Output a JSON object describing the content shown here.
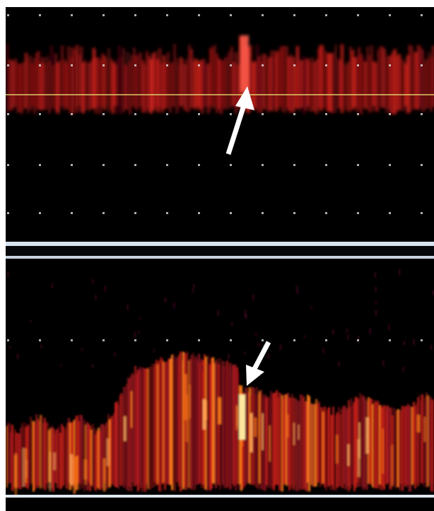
{
  "image": {
    "kind": "doppler-ultrasound-strip",
    "panels": [
      {
        "id": "upper",
        "annotation": "arrow-up-left"
      },
      {
        "id": "lower",
        "annotation": "arrow-down-left"
      }
    ],
    "colors": {
      "background": "#000000",
      "frame": "#ffffff",
      "signal_dark": "#6b0a12",
      "signal_mid": "#c8201a",
      "signal_hot": "#ff7a1a",
      "signal_peak": "#ffe8a0",
      "baseline_yellow": "#e8e070",
      "separator": "#d8e4f0",
      "marker_dots": "#d8d8d8",
      "arrow": "#ffffff"
    }
  }
}
